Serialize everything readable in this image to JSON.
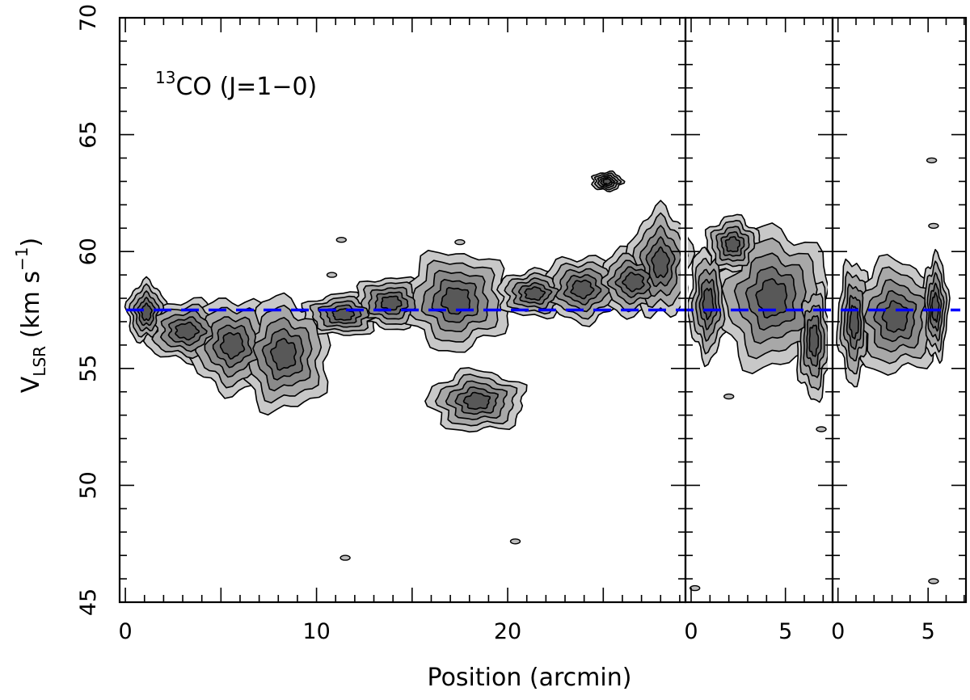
{
  "chart_data": {
    "type": "contour",
    "title": "",
    "annotation": {
      "isotope": "13",
      "molecule": "CO",
      "transition": "(J=1−0)"
    },
    "xlabel": "Position (arcmin)",
    "ylabel": {
      "main": "V",
      "subscript": "LSR",
      "units": "(km s",
      "exponent": "−1",
      "close": ")"
    },
    "ylim": [
      45,
      70
    ],
    "yticks": [
      45,
      50,
      55,
      60,
      65,
      70
    ],
    "grid": false,
    "legend": "none",
    "reference_line": {
      "value": 57.5,
      "color": "#0000ff",
      "style": "dashed"
    },
    "panels": [
      {
        "xlim": [
          -0.3,
          29.3
        ],
        "xticks": [
          0,
          10,
          20
        ]
      },
      {
        "xlim": [
          -0.3,
          7.5
        ],
        "xticks": [
          0,
          5
        ]
      },
      {
        "xlim": [
          -0.3,
          7.1
        ],
        "xticks": [
          0,
          5
        ]
      }
    ],
    "levels": [
      "#c8c8c8",
      "#a8a8a8",
      "#8a8a8a",
      "#707070",
      "#585858"
    ]
  }
}
